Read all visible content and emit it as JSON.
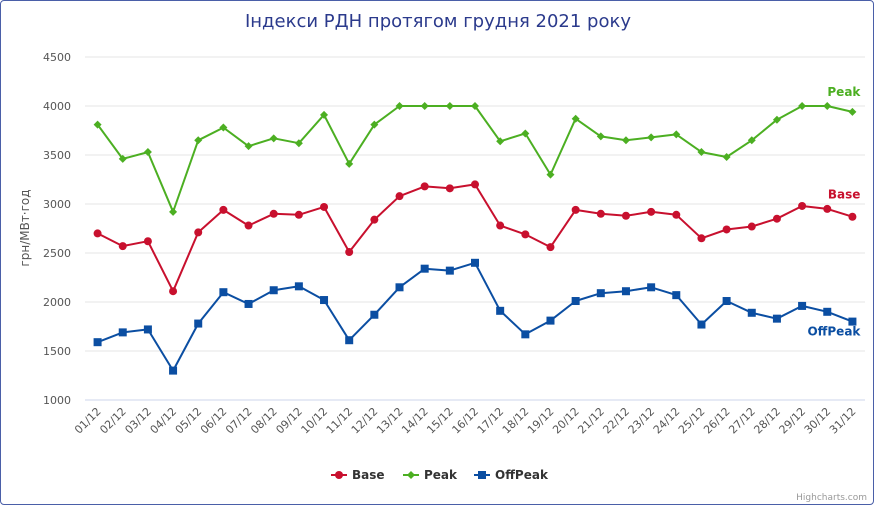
{
  "chart_data": {
    "type": "line",
    "title": "Індекси РДН протягом грудня 2021 року",
    "xlabel": "",
    "ylabel": "грн/МВт·год",
    "ylim": [
      1000,
      4500
    ],
    "yticks": [
      1000,
      1500,
      2000,
      2500,
      3000,
      3500,
      4000,
      4500
    ],
    "grid": true,
    "legend": "bottom-center",
    "categories": [
      "01/12",
      "02/12",
      "03/12",
      "04/12",
      "05/12",
      "06/12",
      "07/12",
      "08/12",
      "09/12",
      "10/12",
      "11/12",
      "12/12",
      "13/12",
      "14/12",
      "15/12",
      "16/12",
      "17/12",
      "18/12",
      "19/12",
      "20/12",
      "21/12",
      "22/12",
      "23/12",
      "24/12",
      "25/12",
      "26/12",
      "27/12",
      "28/12",
      "29/12",
      "30/12",
      "31/12"
    ],
    "series": [
      {
        "name": "Base",
        "color": "#c8102e",
        "marker": "circle",
        "values": [
          2700,
          2570,
          2620,
          2110,
          2710,
          2940,
          2780,
          2900,
          2890,
          2970,
          2510,
          2840,
          3080,
          3180,
          3160,
          3200,
          2780,
          2690,
          2560,
          2940,
          2900,
          2880,
          2920,
          2890,
          2650,
          2740,
          2770,
          2850,
          2980,
          2950,
          2870
        ]
      },
      {
        "name": "Peak",
        "color": "#4caf22",
        "marker": "diamond",
        "values": [
          3810,
          3460,
          3530,
          2920,
          3650,
          3780,
          3590,
          3670,
          3620,
          3910,
          3410,
          3810,
          4000,
          4000,
          4000,
          4000,
          3640,
          3720,
          3300,
          3870,
          3690,
          3650,
          3680,
          3710,
          3530,
          3480,
          3650,
          3860,
          4000,
          4000,
          3940
        ]
      },
      {
        "name": "OffPeak",
        "color": "#0b4ea2",
        "marker": "square",
        "values": [
          1590,
          1690,
          1720,
          1300,
          1780,
          2100,
          1980,
          2120,
          2160,
          2020,
          1610,
          1870,
          2150,
          2340,
          2320,
          2400,
          1910,
          1670,
          1810,
          2010,
          2090,
          2110,
          2150,
          2070,
          1770,
          2010,
          1890,
          1830,
          1960,
          1900,
          1800
        ]
      }
    ],
    "credits": "Highcharts.com"
  }
}
